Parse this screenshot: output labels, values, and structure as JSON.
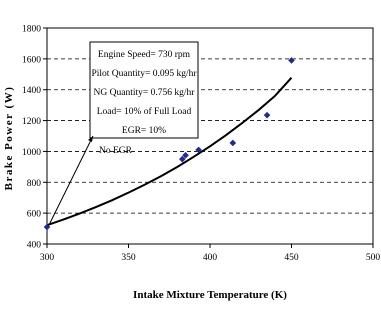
{
  "chart_data": {
    "type": "scatter",
    "xlabel": "Intake Mixture Temperature (K)",
    "ylabel": "Brake Power (W)",
    "xlim": [
      300,
      500
    ],
    "ylim": [
      400,
      1800
    ],
    "xticks": [
      "300",
      "350",
      "400",
      "450",
      "500"
    ],
    "yticks": [
      "400",
      "600",
      "800",
      "1000",
      "1200",
      "1400",
      "1600",
      "1800"
    ],
    "grid": "horizontal-dashed",
    "points": [
      {
        "x": 300,
        "y": 510
      },
      {
        "x": 383,
        "y": 950
      },
      {
        "x": 385,
        "y": 975
      },
      {
        "x": 393,
        "y": 1010
      },
      {
        "x": 414,
        "y": 1055
      },
      {
        "x": 435,
        "y": 1235
      },
      {
        "x": 450,
        "y": 1590
      }
    ],
    "trendline": {
      "type": "exponential",
      "x": [
        300,
        310,
        320,
        330,
        340,
        350,
        360,
        370,
        380,
        390,
        400,
        410,
        420,
        430,
        440,
        450
      ],
      "y": [
        522,
        558,
        597,
        639,
        684,
        733,
        785,
        840,
        900,
        965,
        1033,
        1107,
        1186,
        1270,
        1361,
        1478
      ]
    },
    "annotation_box": [
      "Engine Speed= 730 rpm",
      "Pilot Quantity= 0.095 kg/hr",
      "NG Quantity= 0.756 kg/hr",
      "Load= 10% of Full Load",
      "EGR= 10%"
    ],
    "arrow_label": "No EGR",
    "colors": {
      "marker": "#1f2b8f",
      "line": "#000000",
      "grid": "#000000"
    }
  }
}
